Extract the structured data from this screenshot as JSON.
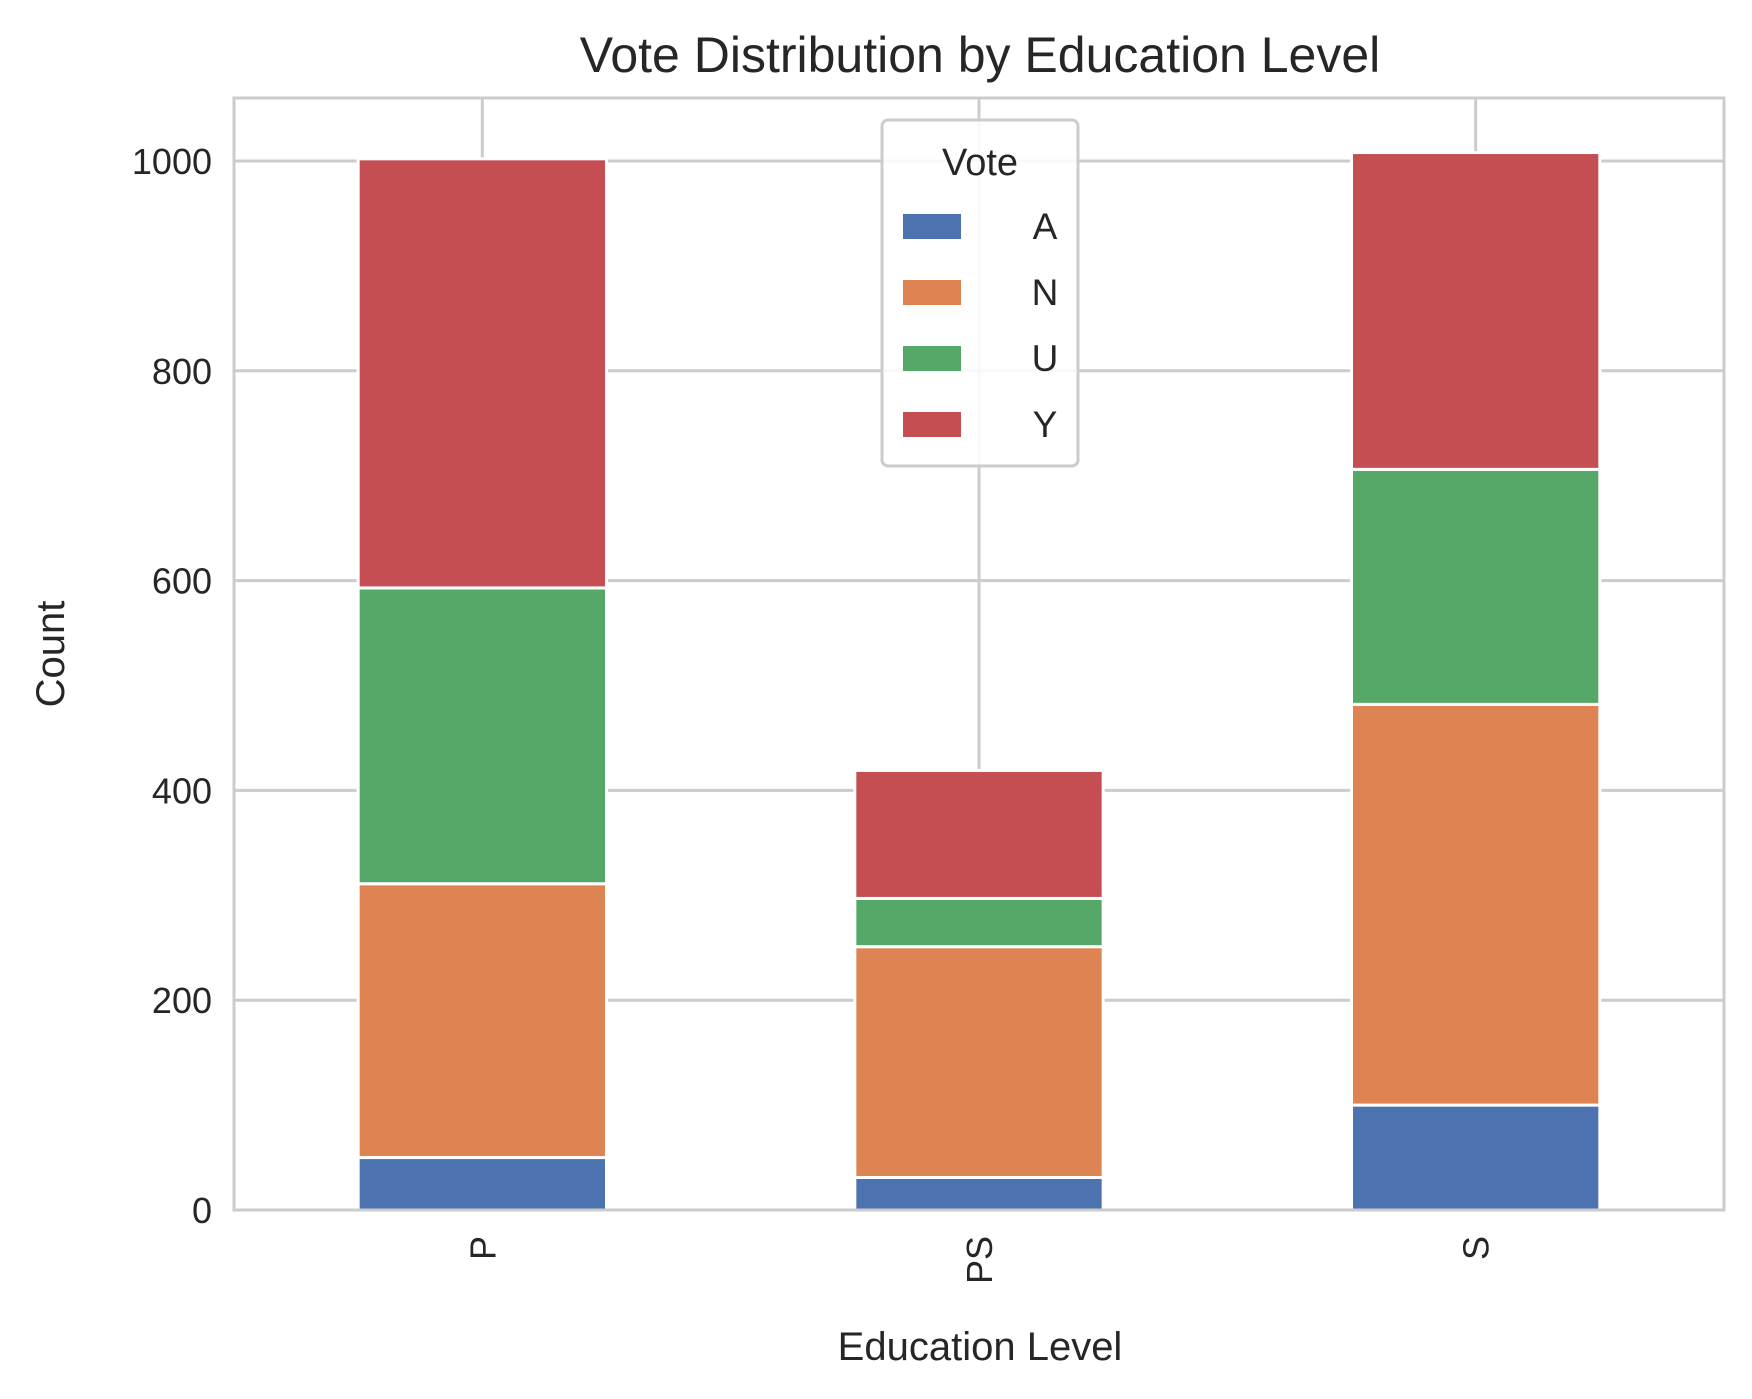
{
  "chart_data": {
    "type": "bar",
    "stacked": true,
    "title": "Vote Distribution by Education Level",
    "xlabel": "Education Level",
    "ylabel": "Count",
    "categories": [
      "P",
      "PS",
      "S"
    ],
    "ylim": [
      0,
      1060
    ],
    "yticks": [
      0,
      200,
      400,
      600,
      800,
      1000
    ],
    "grid": true,
    "legend": {
      "title": "Vote",
      "placement": "top-center"
    },
    "series": [
      {
        "name": "A",
        "color": "#4c72b0",
        "values": [
          50,
          31,
          100
        ]
      },
      {
        "name": "N",
        "color": "#dd8452",
        "values": [
          261,
          220,
          382
        ]
      },
      {
        "name": "U",
        "color": "#55a868",
        "values": [
          282,
          46,
          224
        ]
      },
      {
        "name": "Y",
        "color": "#c44e52",
        "values": [
          409,
          122,
          302
        ]
      }
    ]
  }
}
